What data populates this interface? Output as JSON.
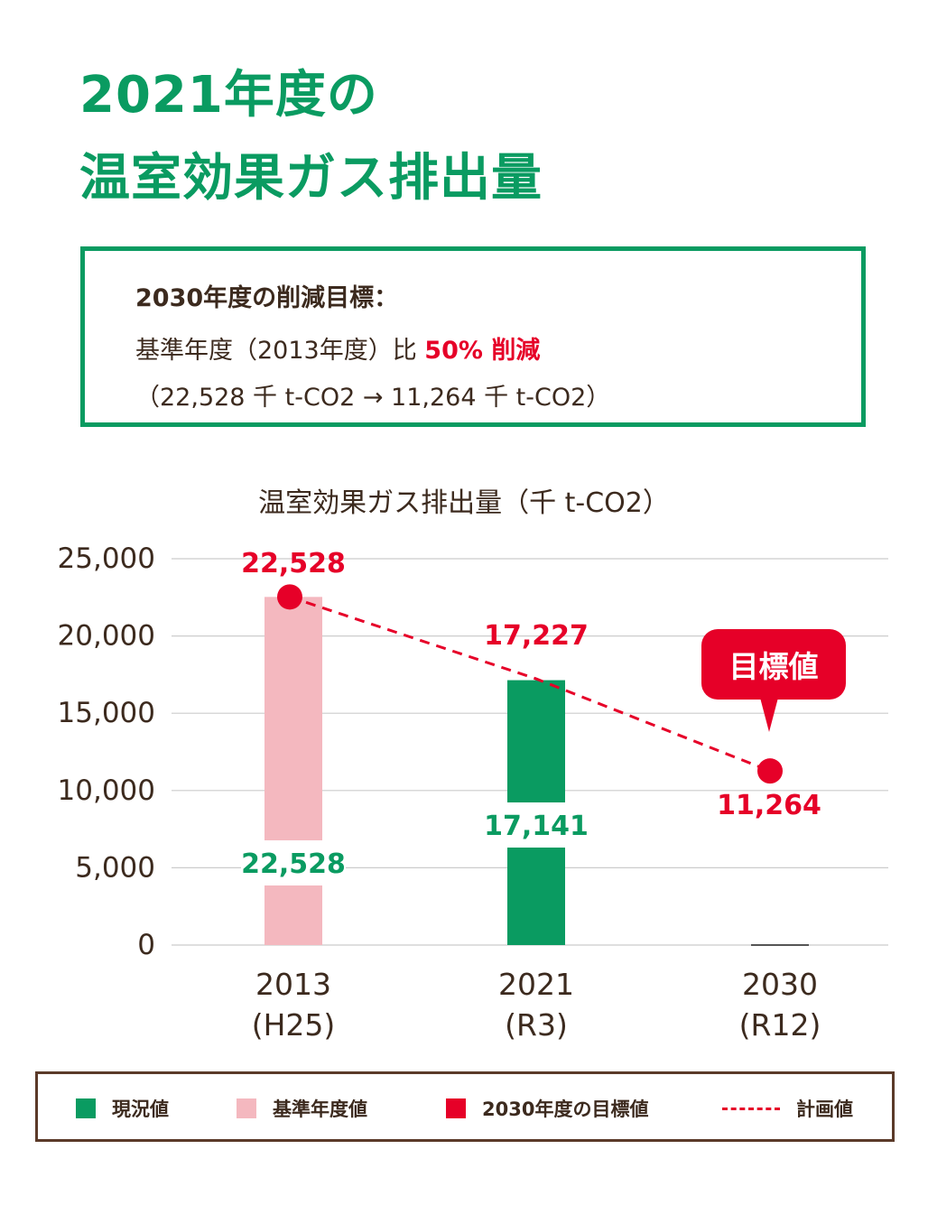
{
  "page": {
    "title_line1": "2021年度の",
    "title_line2": "温室効果ガス排出量"
  },
  "goal": {
    "heading": "2030年度の削減目標：",
    "line2_text": "基準年度（2013年度）比 ",
    "line2_highlight": "50% 削減",
    "line3": "（22,528 千 t-CO2 → 11,264 千 t-CO2）"
  },
  "colors": {
    "green": "#0a9b61",
    "pink": "#f4b8bf",
    "red": "#e60028",
    "text": "#3c2a1e",
    "grid": "#cccccc",
    "legend_border": "#5b3a29"
  },
  "chart_data": {
    "type": "bar",
    "title": "温室効果ガス排出量（千 t-CO2）",
    "ylim": [
      0,
      25000
    ],
    "yticks": [
      "0",
      "5,000",
      "10,000",
      "15,000",
      "20,000",
      "25,000"
    ],
    "categories": [
      {
        "year": "2013",
        "era": "(H25)"
      },
      {
        "year": "2021",
        "era": "(R3)"
      },
      {
        "year": "2030",
        "era": "(R12)"
      }
    ],
    "bars": [
      {
        "value": 22528,
        "label": "22,528",
        "color": "pink"
      },
      {
        "value": 17141,
        "label": "17,141",
        "color": "green"
      },
      {
        "value": 0,
        "label": "",
        "color": "none"
      }
    ],
    "plan_line": {
      "name": "計画値",
      "values": [
        22528,
        17227,
        11264
      ],
      "labels": [
        "22,528",
        "17,227",
        "11,264"
      ],
      "markers": [
        true,
        false,
        true
      ]
    },
    "callout": "目標値",
    "grid": true
  },
  "legend": [
    {
      "label": "現況値",
      "color": "green",
      "kind": "square"
    },
    {
      "label": "基準年度値",
      "color": "pink",
      "kind": "square"
    },
    {
      "label": "2030年度の目標値",
      "color": "red",
      "kind": "square"
    },
    {
      "label": "計画値",
      "color": "red",
      "kind": "dash"
    }
  ]
}
